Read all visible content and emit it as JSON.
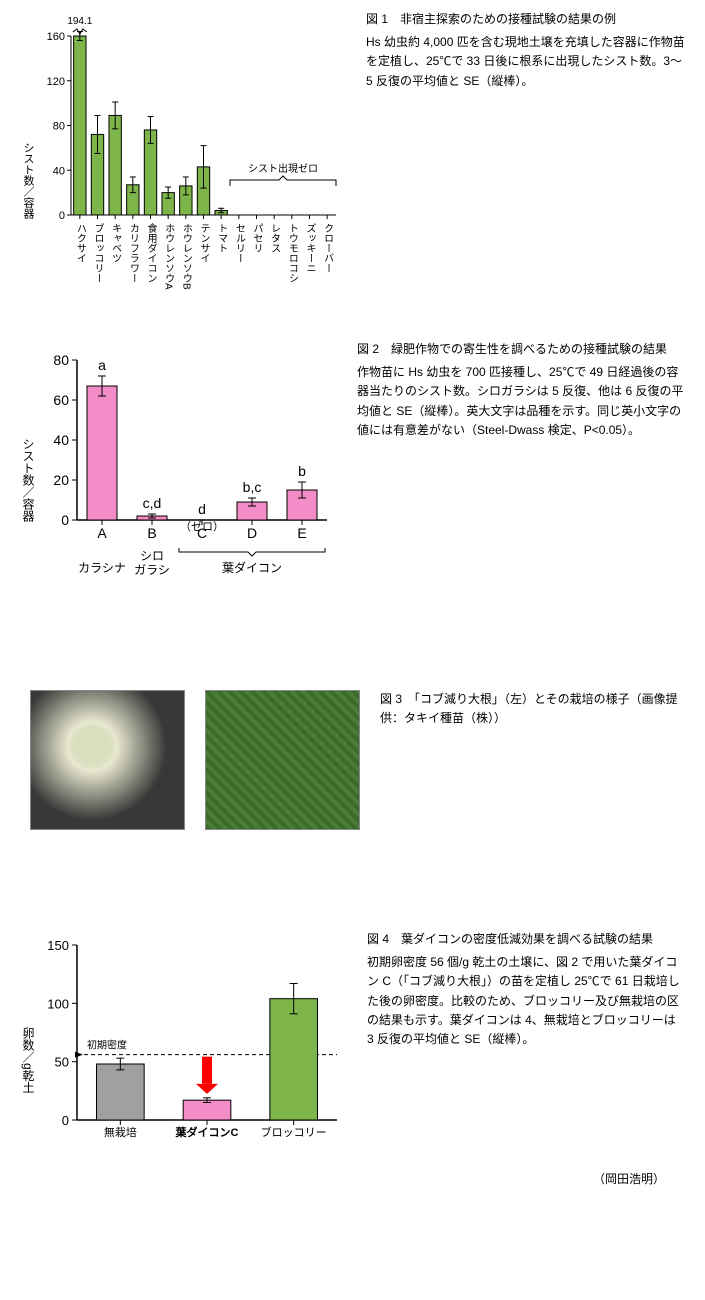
{
  "fig1": {
    "type": "bar",
    "caption_title": "図 1　非宿主探索のための接種試験の結果の例",
    "caption_body": "Hs 幼虫約 4,000 匹を含む現地土壌を充填した容器に作物苗を定植し、25℃で 33 日後に根系に出現したシスト数。3～5 反復の平均値と SE（縦棒）。",
    "ylabel": "シスト数／容器",
    "break_label": "194.1",
    "bracket_label": "シスト出現ゼロ",
    "ylim": [
      0,
      160
    ],
    "ytick_step": 40,
    "categories": [
      "ハクサイ",
      "ブロッコリー",
      "キャベツ",
      "カリフラワー",
      "食用ダイコン",
      "ホウレンソウA",
      "ホウレンソウB",
      "テンサイ",
      "トマト",
      "セルリー",
      "パセリ",
      "レタス",
      "トウモロコシ",
      "ズッキーニ",
      "クローバー"
    ],
    "values": [
      160,
      72,
      89,
      27,
      76,
      20,
      26,
      43,
      4,
      0,
      0,
      0,
      0,
      0,
      0
    ],
    "errors": [
      4,
      17,
      12,
      7,
      12,
      5,
      8,
      19,
      2,
      0,
      0,
      0,
      0,
      0,
      0
    ],
    "bar_color": "#7db54a",
    "bar_border": "#000000",
    "grid_color": "#000000",
    "background_color": "#ffffff",
    "bar_width": 0.7,
    "label_fontsize": 10
  },
  "fig2": {
    "type": "bar",
    "caption_title": "図 2　緑肥作物での寄生性を調べるための接種試験の結果",
    "caption_body": "作物苗に Hs 幼虫を 700 匹接種し、25℃で 49 日経過後の容器当たりのシスト数。シロガラシは 5 反復、他は 6 反復の平均値と SE（縦棒）。英大文字は品種を示す。同じ英小文字の値には有意差がない（Steel-Dwass 検定、P<0.05）。",
    "ylabel": "シスト数／容器",
    "ylim": [
      0,
      80
    ],
    "ytick_step": 20,
    "categories": [
      "A",
      "B",
      "C",
      "D",
      "E"
    ],
    "groups": [
      "カラシナ",
      "シロガラシ",
      "葉ダイコン"
    ],
    "group_brace_range": [
      2,
      4
    ],
    "values": [
      67,
      2,
      0,
      9,
      15
    ],
    "errors": [
      5,
      1,
      0,
      2,
      4
    ],
    "sig": [
      "a",
      "c,d",
      "d",
      "b,c",
      "b"
    ],
    "zero_label": "（ゼロ）",
    "bar_color": "#f48cc8",
    "bar_border": "#000000",
    "bar_width": 0.6,
    "label_fontsize": 14
  },
  "fig3": {
    "caption_title": "図 3　「コブ減り大根」（左）とその栽培の様子（画像提供：タキイ種苗（株））"
  },
  "fig4": {
    "type": "bar",
    "caption_title": "図 4　葉ダイコンの密度低減効果を調べる試験の結果",
    "caption_body": "初期卵密度 56 個/g 乾土の土壌に、図 2 で用いた葉ダイコン C（「コブ減り大根」）の苗を定植し 25℃で 61 日栽培した後の卵密度。比較のため、ブロッコリー及び無栽培の区の結果も示す。葉ダイコンは 4、無栽培とブロッコリーは 3 反復の平均値と SE（縦棒）。",
    "ylabel": "卵数／g乾土",
    "ylim": [
      0,
      150
    ],
    "ytick_step": 50,
    "initial_density": 56,
    "initial_density_label": "初期密度",
    "categories": [
      "無栽培",
      "葉ダイコンC",
      "ブロッコリー"
    ],
    "values": [
      48,
      17,
      104
    ],
    "errors": [
      5,
      2,
      13
    ],
    "bar_colors": [
      "#a0a0a0",
      "#f48cc8",
      "#7db54a"
    ],
    "bar_border": "#000000",
    "bar_width": 0.55,
    "arrow_color": "#ff0000"
  },
  "author": "（岡田浩明）"
}
